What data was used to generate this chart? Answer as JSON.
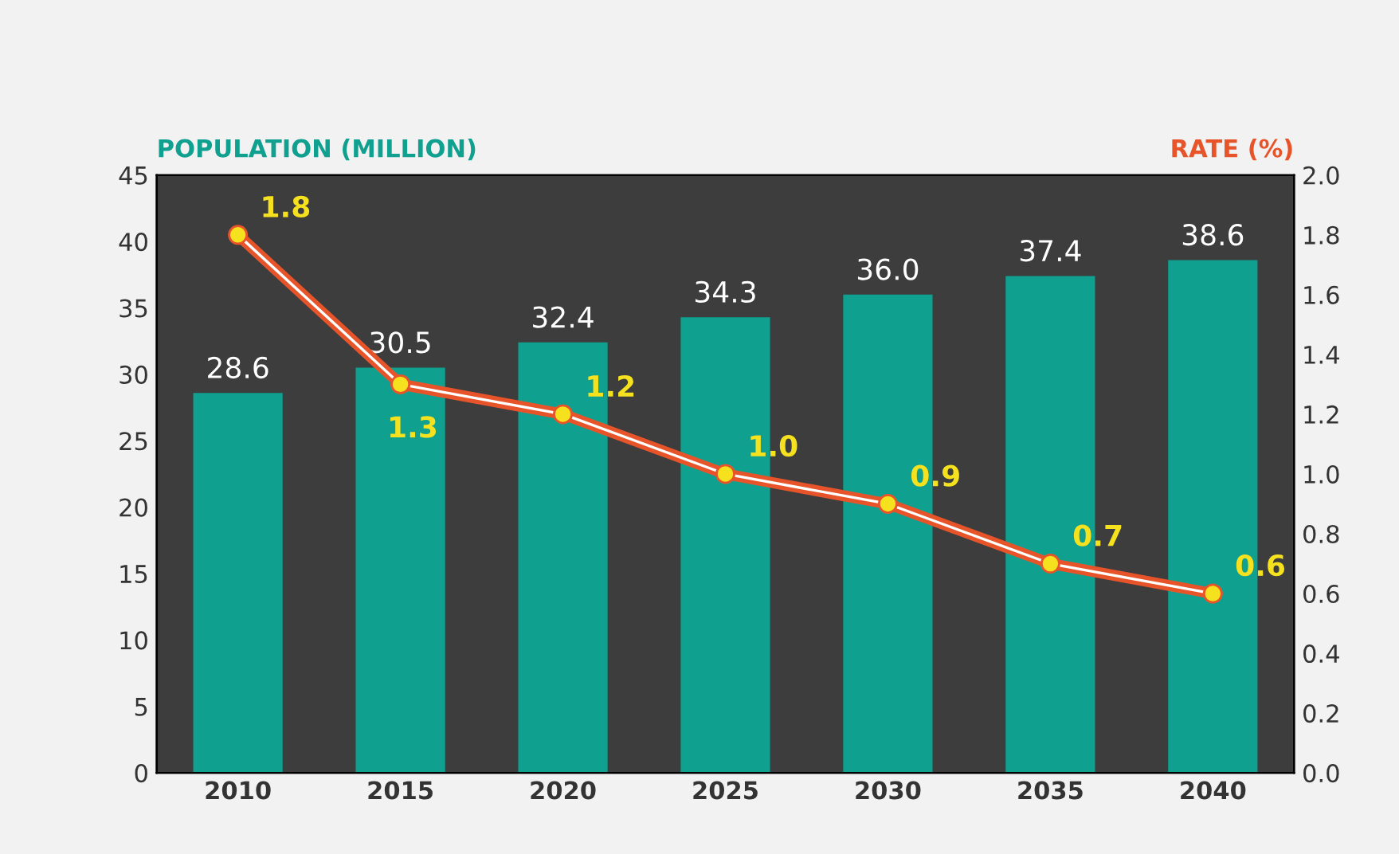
{
  "chart_data": {
    "type": "bar",
    "categories": [
      "2010",
      "2015",
      "2020",
      "2025",
      "2030",
      "2035",
      "2040"
    ],
    "ylabel": "POPULATION (MILLION)",
    "y2label": "RATE (%)",
    "series": [
      {
        "color": "#0fa090",
        "values": [
          28.6,
          30.5,
          32.4,
          34.3,
          36.0,
          37.4,
          38.6
        ],
        "value_labels": [
          "28.6",
          "30.5",
          "32.4",
          "34.3",
          "36.0",
          "37.4",
          "38.6"
        ]
      },
      {
        "type": "line",
        "axis": "y2",
        "color": "#e8542a",
        "values": [
          1.8,
          1.3,
          1.2,
          1.0,
          0.9,
          0.7,
          0.6
        ],
        "value_labels": [
          "1.8",
          "1.3",
          "1.2",
          "1.0",
          "0.9",
          "0.7",
          "0.6"
        ]
      }
    ],
    "ylim": [
      0,
      45
    ],
    "yticks": [
      0,
      5,
      10,
      15,
      20,
      25,
      30,
      35,
      40,
      45
    ],
    "y2lim": [
      0.0,
      2.0
    ],
    "y2ticks": [
      {
        "value": 0,
        "label": "0.0"
      },
      0.2,
      0.4,
      0.6,
      0.8,
      {
        "value": 1,
        "label": "1.0"
      },
      1.2,
      1.4,
      1.6,
      1.8,
      {
        "value": 2,
        "label": "2.0"
      }
    ],
    "marker": "circle",
    "line_style": "solid",
    "grid": false,
    "legend": false
  }
}
